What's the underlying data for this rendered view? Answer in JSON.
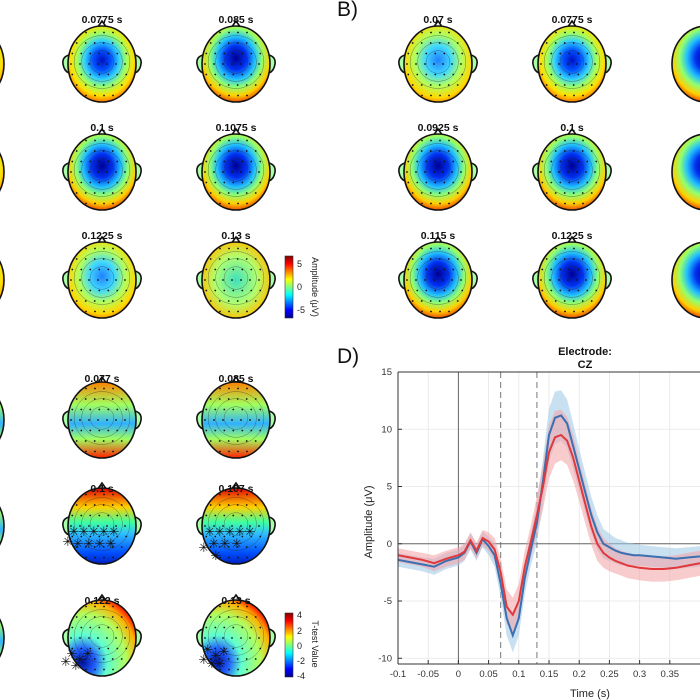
{
  "panel_labels": {
    "b": "B)",
    "d": "D)"
  },
  "topomaps": {
    "panel_a_times": [
      "0.0775 s",
      "0.085 s",
      "0.1 s",
      "0.1075 s",
      "0.1225 s",
      "0.13 s"
    ],
    "panel_b_times": [
      "0.07 s",
      "0.0775 s",
      "0.0925 s",
      "0.1 s",
      "0.115 s",
      "0.1225 s"
    ],
    "panel_c_times": [
      "0.077 s",
      "0.085 s",
      "0.1 s",
      "0.107 s",
      "0.122 s",
      "0.13 s"
    ]
  },
  "colorbars": {
    "amplitude": {
      "label": "Amplitude (μV)",
      "ticks": [
        "5",
        "0",
        "-5"
      ]
    },
    "ttest": {
      "label": "T-test Value",
      "ticks": [
        "4",
        "2",
        "0",
        "-2",
        "-4"
      ]
    }
  },
  "colors": {
    "blue_series": "#3a6fb0",
    "red_series": "#e0383b",
    "blue_band": "#9cc6e6",
    "red_band": "#f2a0a4"
  },
  "chart_data": {
    "type": "line",
    "title": "Electrode:",
    "subtitle": "CZ",
    "xlabel": "Time (s)",
    "ylabel": "Amplitude (μV)",
    "xlim": [
      -0.1,
      0.4
    ],
    "ylim": [
      -10.5,
      15
    ],
    "xticks": [
      -0.1,
      -0.05,
      0,
      0.05,
      0.1,
      0.15,
      0.2,
      0.25,
      0.3,
      0.35
    ],
    "xtick_labels": [
      "-0.1",
      "-0.05",
      "0",
      "0.05",
      "0.1",
      "0.15",
      "0.2",
      "0.25",
      "0.3",
      "0.35"
    ],
    "yticks": [
      -10,
      -5,
      0,
      5,
      10,
      15
    ],
    "ytick_labels": [
      "-10",
      "-5",
      "0",
      "5",
      "10",
      "15"
    ],
    "vlines_dashed": [
      0.07,
      0.13
    ],
    "grid": true,
    "x": [
      -0.1,
      -0.08,
      -0.06,
      -0.04,
      -0.02,
      0,
      0.01,
      0.02,
      0.03,
      0.04,
      0.05,
      0.06,
      0.07,
      0.08,
      0.09,
      0.1,
      0.11,
      0.12,
      0.13,
      0.14,
      0.15,
      0.16,
      0.17,
      0.18,
      0.19,
      0.2,
      0.21,
      0.22,
      0.23,
      0.24,
      0.25,
      0.26,
      0.27,
      0.28,
      0.29,
      0.3,
      0.32,
      0.34,
      0.36,
      0.38,
      0.4
    ],
    "series": [
      {
        "color": "blue",
        "values": [
          -1.4,
          -1.6,
          -1.8,
          -2.0,
          -1.5,
          -1.2,
          -0.8,
          0.2,
          -0.8,
          0.4,
          -0.2,
          -1.0,
          -3.5,
          -6.5,
          -8.0,
          -6.5,
          -3.0,
          -0.5,
          1.8,
          5.5,
          9.5,
          11.0,
          11.2,
          10.5,
          8.5,
          6.5,
          4.5,
          2.5,
          1.0,
          0.0,
          -0.3,
          -0.6,
          -0.8,
          -0.9,
          -1.0,
          -1.0,
          -1.1,
          -1.2,
          -1.3,
          -1.2,
          -1.1
        ],
        "upper": [
          -0.8,
          -1.0,
          -1.2,
          -1.3,
          -0.8,
          -0.5,
          -0.1,
          0.9,
          -0.1,
          1.1,
          0.6,
          0.0,
          -2.3,
          -5.0,
          -6.5,
          -5.0,
          -1.6,
          0.9,
          3.5,
          7.5,
          11.8,
          13.3,
          13.4,
          12.6,
          10.5,
          8.3,
          6.2,
          4.1,
          2.5,
          1.3,
          0.9,
          0.5,
          0.3,
          0.1,
          0.0,
          -0.1,
          -0.2,
          -0.3,
          -0.4,
          -0.3,
          -0.2
        ],
        "lower": [
          -2.0,
          -2.2,
          -2.4,
          -2.7,
          -2.2,
          -1.9,
          -1.5,
          -0.5,
          -1.5,
          -0.3,
          -1.0,
          -2.0,
          -4.7,
          -8.0,
          -9.5,
          -8.0,
          -4.4,
          -1.9,
          0.1,
          3.5,
          7.2,
          8.7,
          9.0,
          8.4,
          6.5,
          4.7,
          2.8,
          0.9,
          -0.5,
          -1.3,
          -1.5,
          -1.7,
          -1.9,
          -1.9,
          -2.0,
          -1.9,
          -2.0,
          -2.1,
          -2.2,
          -2.1,
          -2.0
        ]
      },
      {
        "color": "red",
        "values": [
          -1.0,
          -1.2,
          -1.4,
          -1.7,
          -1.3,
          -1.0,
          -0.7,
          0.3,
          -0.6,
          0.5,
          0.2,
          -0.5,
          -2.5,
          -5.5,
          -6.2,
          -5.0,
          -2.0,
          0.2,
          2.5,
          5.0,
          8.0,
          9.3,
          9.5,
          9.0,
          7.5,
          5.5,
          3.5,
          1.5,
          0.0,
          -0.8,
          -1.2,
          -1.5,
          -1.7,
          -1.9,
          -2.0,
          -2.1,
          -2.2,
          -2.2,
          -2.1,
          -1.9,
          -1.7
        ],
        "upper": [
          -0.4,
          -0.6,
          -0.8,
          -1.0,
          -0.6,
          -0.3,
          0.0,
          1.0,
          0.1,
          1.2,
          1.0,
          0.5,
          -1.3,
          -4.0,
          -4.7,
          -3.5,
          -0.6,
          1.6,
          4.2,
          7.0,
          10.3,
          11.6,
          11.7,
          11.1,
          9.5,
          7.3,
          5.2,
          3.1,
          1.5,
          0.5,
          0.0,
          -0.4,
          -0.6,
          -0.8,
          -0.9,
          -1.0,
          -1.1,
          -1.1,
          -1.0,
          -0.8,
          -0.6
        ],
        "lower": [
          -1.6,
          -1.8,
          -2.0,
          -2.4,
          -2.0,
          -1.7,
          -1.4,
          -0.4,
          -1.3,
          -0.2,
          -0.6,
          -1.5,
          -3.7,
          -7.0,
          -7.7,
          -6.5,
          -3.4,
          -1.2,
          0.8,
          3.0,
          5.7,
          7.0,
          7.3,
          6.9,
          5.5,
          3.7,
          1.8,
          -0.1,
          -1.5,
          -2.1,
          -2.4,
          -2.6,
          -2.8,
          -3.0,
          -3.1,
          -3.2,
          -3.3,
          -3.3,
          -3.2,
          -3.0,
          -2.8
        ]
      }
    ]
  }
}
